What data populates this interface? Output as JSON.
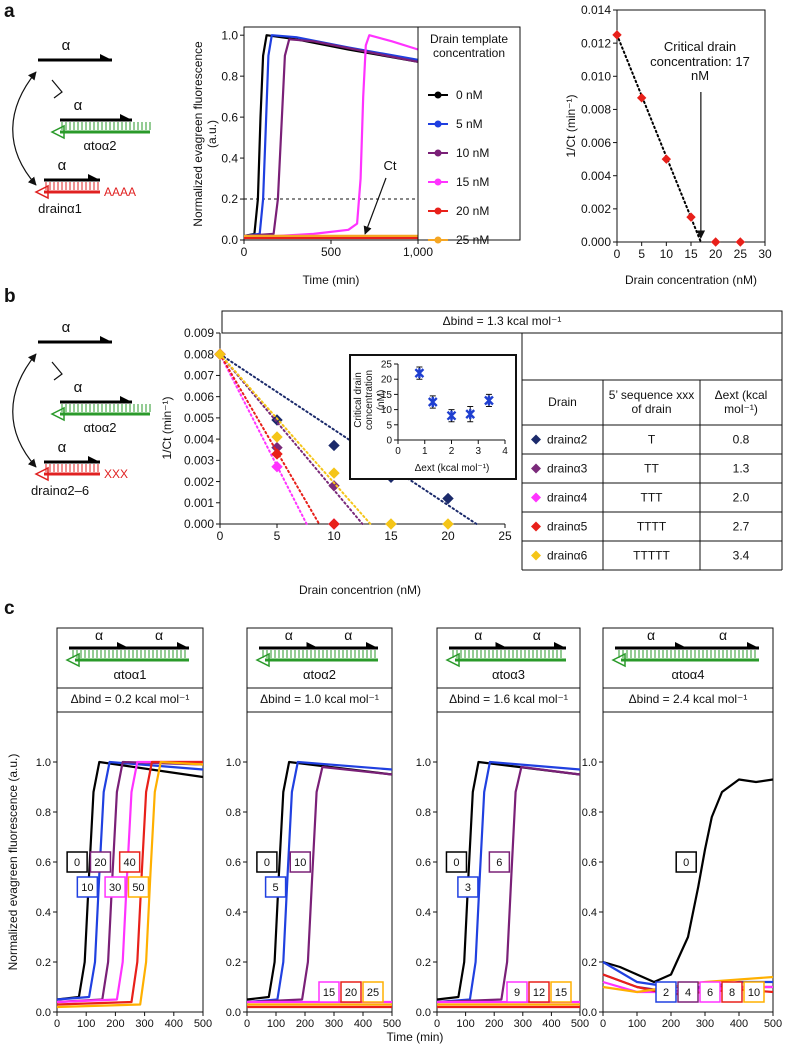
{
  "panel_labels": [
    "a",
    "b",
    "c"
  ],
  "schematics": {
    "a": {
      "top": "α",
      "middle": "α",
      "middle_label": "αtoα2",
      "bottom": "α",
      "tail": "AAAA",
      "bottom_label": "drainα1"
    },
    "b": {
      "top": "α",
      "middle": "α",
      "middle_label": "αtoα2",
      "bottom": "α",
      "tail": "XXX",
      "bottom_label": "drainα2–6"
    }
  },
  "shared_labels": {
    "c_y_label": "Normalized evagreen fluorescence (a.u.)",
    "c_x_label": "Time (min)"
  },
  "chart_data": [
    {
      "type": "line",
      "y_label": "Normalized evagreen fluorescence (a.u.)",
      "x_label": "Time (min)",
      "legend_title": "Drain template concentration",
      "legend": "outside right",
      "xlim": [
        0,
        1000
      ],
      "xticks": [
        0,
        500,
        {
          "value": 1000,
          "label": "1,000"
        }
      ],
      "ylim": [
        0,
        1.04
      ],
      "yticks": [
        {
          "value": 0,
          "label": "0.0"
        },
        0.2,
        0.4,
        0.6,
        0.8,
        {
          "value": 1,
          "label": "1.0"
        }
      ],
      "threshold": 0.2,
      "ct_label": "Ct",
      "series": [
        {
          "name": "0 nM",
          "color": "#000000",
          "x": [
            0,
            60,
            80,
            95,
            110,
            130,
            300,
            600,
            1000
          ],
          "values": [
            0.02,
            0.03,
            0.2,
            0.6,
            0.9,
            1.0,
            0.98,
            0.93,
            0.87
          ]
        },
        {
          "name": "5 nM",
          "color": "#1f3fe0",
          "x": [
            0,
            90,
            110,
            125,
            140,
            160,
            300,
            600,
            1000
          ],
          "values": [
            0.02,
            0.03,
            0.2,
            0.55,
            0.9,
            1.0,
            0.99,
            0.94,
            0.88
          ]
        },
        {
          "name": "10 nM",
          "color": "#7a2077",
          "x": [
            0,
            170,
            195,
            215,
            235,
            260,
            400,
            700,
            1000
          ],
          "values": [
            0.02,
            0.03,
            0.2,
            0.55,
            0.9,
            0.98,
            0.97,
            0.92,
            0.87
          ]
        },
        {
          "name": "15 nM",
          "color": "#ff33ff",
          "x": [
            0,
            400,
            600,
            650,
            670,
            685,
            700,
            720,
            850,
            1000
          ],
          "values": [
            0.01,
            0.03,
            0.05,
            0.08,
            0.3,
            0.7,
            0.95,
            1.0,
            0.97,
            0.93
          ]
        },
        {
          "name": "20 nM",
          "color": "#e8201a",
          "x": [
            0,
            1000
          ],
          "values": [
            0.01,
            0.01
          ]
        },
        {
          "name": "25 nM",
          "color": "#f5a623",
          "x": [
            0,
            1000
          ],
          "values": [
            0.02,
            0.02
          ]
        }
      ]
    },
    {
      "type": "scatter",
      "y_label": "1/Ct (min⁻¹)",
      "x_label": "Drain concentration (nM)",
      "xlim": [
        0,
        30
      ],
      "xticks": [
        0,
        5,
        10,
        15,
        20,
        25,
        30
      ],
      "ylim": [
        0,
        0.014
      ],
      "yticks": [
        {
          "value": 0,
          "label": "0.000"
        },
        0.002,
        0.004,
        0.006,
        0.008,
        {
          "value": 0.01,
          "label": "0.010"
        },
        0.012,
        0.014
      ],
      "annotation": "Critical drain concentration: 17 nM",
      "series": [
        {
          "color": "#e8201a",
          "x": [
            0,
            5,
            10,
            15,
            20,
            25
          ],
          "values": [
            0.0125,
            0.0087,
            0.005,
            0.0015,
            0,
            0
          ],
          "fit": {
            "x": [
              0,
              17
            ],
            "values": [
              0.0125,
              0
            ]
          }
        }
      ]
    },
    {
      "type": "scatter",
      "title": "Δbind = 1.3 kcal mol⁻¹",
      "y_label": "1/Ct (min⁻¹)",
      "x_label": "Drain concentrion (nM)",
      "xlim": [
        0,
        25
      ],
      "xticks": [
        0,
        5,
        10,
        15,
        20,
        25
      ],
      "ylim": [
        0,
        0.009
      ],
      "yticks": [
        {
          "value": 0,
          "label": "0.000"
        },
        0.001,
        0.002,
        0.003,
        0.004,
        0.005,
        0.006,
        0.007,
        0.008,
        0.009
      ],
      "series": [
        {
          "name": "drainα2",
          "color": "#1b2a6b",
          "x": [
            0,
            5,
            10,
            15,
            20
          ],
          "values": [
            0.008,
            0.0049,
            0.0037,
            0.0022,
            0.0012
          ],
          "fit": {
            "x": [
              0,
              22.5
            ],
            "values": [
              0.008,
              0
            ]
          }
        },
        {
          "name": "drainα3",
          "color": "#7a2a7a",
          "x": [
            0,
            5,
            10
          ],
          "values": [
            0.008,
            0.0036,
            0.0018
          ],
          "fit": {
            "x": [
              0,
              12.5
            ],
            "values": [
              0.008,
              0
            ]
          }
        },
        {
          "name": "drainα4",
          "color": "#ff33ff",
          "x": [
            0,
            5,
            10
          ],
          "values": [
            0.008,
            0.0027,
            0
          ],
          "fit": {
            "x": [
              0,
              7.6
            ],
            "values": [
              0.008,
              0
            ]
          }
        },
        {
          "name": "drainα5",
          "color": "#e8201a",
          "x": [
            0,
            5,
            10
          ],
          "values": [
            0.008,
            0.0033,
            0
          ],
          "fit": {
            "x": [
              0,
              8.7
            ],
            "values": [
              0.008,
              0
            ]
          }
        },
        {
          "name": "drainα6",
          "color": "#f5c518",
          "x": [
            0,
            5,
            10,
            15,
            20
          ],
          "values": [
            0.008,
            0.0041,
            0.0024,
            0,
            0
          ],
          "fit": {
            "x": [
              0,
              13.2
            ],
            "values": [
              0.008,
              0
            ]
          }
        }
      ],
      "table": {
        "header": [
          "Drain",
          "5’ sequence xxx of drain",
          "Δext (kcal mol⁻¹)"
        ],
        "rows": [
          [
            "T",
            "0.8"
          ],
          [
            "TT",
            "1.3"
          ],
          [
            "TTT",
            "2.0"
          ],
          [
            "TTTT",
            "2.7"
          ],
          [
            "TTTTT",
            "3.4"
          ]
        ]
      }
    },
    {
      "type": "scatter",
      "y_label": "Critical drain concentration (nM)",
      "x_label": "Δext (kcal mol⁻¹)",
      "xlim": [
        0,
        4
      ],
      "xticks": [
        0,
        1,
        2,
        3,
        4
      ],
      "ylim": [
        0,
        25
      ],
      "yticks": [
        0,
        5,
        10,
        15,
        20,
        25
      ],
      "series": [
        {
          "color": "#1f3fd0",
          "x": [
            0.8,
            1.3,
            2.0,
            2.7,
            3.4
          ],
          "values": [
            22,
            12.5,
            8,
            8.5,
            13
          ],
          "errors": [
            2,
            2,
            2,
            2.5,
            2
          ]
        }
      ]
    },
    {
      "type": "line",
      "template": "αtoα1",
      "domain_labels": [
        "α",
        "α"
      ],
      "subtitle": "Δbind = 0.2 kcal mol⁻¹",
      "xlim": [
        0,
        500
      ],
      "xticks": [
        0,
        100,
        200,
        300,
        400,
        500
      ],
      "ylim": [
        0,
        1.2
      ],
      "yticks": [
        {
          "value": 0,
          "label": "0.0"
        },
        0.2,
        0.4,
        0.6,
        0.8,
        {
          "value": 1,
          "label": "1.0"
        }
      ],
      "series": [
        {
          "name": "0",
          "color": "#000000",
          "x": [
            0,
            75,
            95,
            110,
            125,
            145,
            500
          ],
          "values": [
            0.05,
            0.06,
            0.2,
            0.55,
            0.88,
            1.0,
            0.94
          ]
        },
        {
          "name": "10",
          "color": "#2040e0",
          "x": [
            0,
            110,
            130,
            145,
            160,
            180,
            500
          ],
          "values": [
            0.05,
            0.06,
            0.2,
            0.55,
            0.88,
            1.0,
            0.97
          ]
        },
        {
          "name": "20",
          "color": "#7a2077",
          "x": [
            0,
            155,
            175,
            190,
            205,
            225,
            500
          ],
          "values": [
            0.04,
            0.05,
            0.2,
            0.55,
            0.88,
            1.0,
            0.99
          ]
        },
        {
          "name": "30",
          "color": "#ff33ff",
          "x": [
            0,
            205,
            225,
            240,
            255,
            275,
            500
          ],
          "values": [
            0.04,
            0.05,
            0.2,
            0.55,
            0.88,
            1.0,
            1.0
          ]
        },
        {
          "name": "40",
          "color": "#e8201a",
          "x": [
            0,
            255,
            275,
            290,
            305,
            325,
            500
          ],
          "values": [
            0.03,
            0.04,
            0.2,
            0.55,
            0.88,
            1.0,
            1.0
          ]
        },
        {
          "name": "50",
          "color": "#ffb000",
          "x": [
            0,
            285,
            305,
            320,
            335,
            355,
            500
          ],
          "values": [
            0.02,
            0.03,
            0.2,
            0.55,
            0.88,
            1.0,
            0.99
          ]
        }
      ]
    },
    {
      "type": "line",
      "template": "αtoα2",
      "domain_labels": [
        "α",
        "α"
      ],
      "subtitle": "Δbind = 1.0 kcal mol⁻¹",
      "xlim": [
        0,
        500
      ],
      "xticks": [
        0,
        100,
        200,
        300,
        400,
        500
      ],
      "ylim": [
        0,
        1.2
      ],
      "yticks": [
        {
          "value": 0,
          "label": "0.0"
        },
        0.2,
        0.4,
        0.6,
        0.8,
        {
          "value": 1,
          "label": "1.0"
        }
      ],
      "series": [
        {
          "name": "0",
          "color": "#000000",
          "x": [
            0,
            75,
            95,
            110,
            125,
            145,
            500
          ],
          "values": [
            0.05,
            0.06,
            0.2,
            0.55,
            0.88,
            1.0,
            0.95
          ]
        },
        {
          "name": "5",
          "color": "#2040e0",
          "x": [
            0,
            105,
            125,
            140,
            155,
            175,
            500
          ],
          "values": [
            0.04,
            0.05,
            0.2,
            0.55,
            0.88,
            1.0,
            0.97
          ]
        },
        {
          "name": "10",
          "color": "#7a2077",
          "x": [
            0,
            190,
            210,
            225,
            240,
            260,
            500
          ],
          "values": [
            0.04,
            0.05,
            0.2,
            0.55,
            0.88,
            0.98,
            0.95
          ]
        },
        {
          "name": "15",
          "color": "#ff33ff",
          "x": [
            0,
            500
          ],
          "values": [
            0.04,
            0.04
          ]
        },
        {
          "name": "20",
          "color": "#e8201a",
          "x": [
            0,
            500
          ],
          "values": [
            0.02,
            0.02
          ]
        },
        {
          "name": "25",
          "color": "#ffb000",
          "x": [
            0,
            500
          ],
          "values": [
            0.03,
            0.03
          ]
        }
      ]
    },
    {
      "type": "line",
      "template": "αtoα3",
      "domain_labels": [
        "α",
        "α"
      ],
      "subtitle": "Δbind = 1.6 kcal mol⁻¹",
      "xlim": [
        0,
        500
      ],
      "xticks": [
        0,
        100,
        200,
        300,
        400,
        500
      ],
      "ylim": [
        0,
        1.2
      ],
      "yticks": [
        {
          "value": 0,
          "label": "0.0"
        },
        0.2,
        0.4,
        0.6,
        0.8,
        {
          "value": 1,
          "label": "1.0"
        }
      ],
      "series": [
        {
          "name": "0",
          "color": "#000000",
          "x": [
            0,
            75,
            95,
            110,
            125,
            145,
            500
          ],
          "values": [
            0.05,
            0.06,
            0.2,
            0.55,
            0.88,
            1.0,
            0.95
          ]
        },
        {
          "name": "3",
          "color": "#2040e0",
          "x": [
            0,
            115,
            135,
            150,
            165,
            185,
            500
          ],
          "values": [
            0.04,
            0.05,
            0.2,
            0.55,
            0.88,
            1.0,
            0.97
          ]
        },
        {
          "name": "6",
          "color": "#7a2077",
          "x": [
            0,
            225,
            245,
            260,
            275,
            295,
            500
          ],
          "values": [
            0.04,
            0.05,
            0.2,
            0.55,
            0.88,
            0.98,
            0.95
          ]
        },
        {
          "name": "9",
          "color": "#ff33ff",
          "x": [
            0,
            500
          ],
          "values": [
            0.04,
            0.04
          ]
        },
        {
          "name": "12",
          "color": "#e8201a",
          "x": [
            0,
            500
          ],
          "values": [
            0.02,
            0.02
          ]
        },
        {
          "name": "15",
          "color": "#ffb000",
          "x": [
            0,
            500
          ],
          "values": [
            0.03,
            0.03
          ]
        }
      ]
    },
    {
      "type": "line",
      "template": "αtoα4",
      "domain_labels": [
        "α",
        "α"
      ],
      "subtitle": "Δbind = 2.4 kcal mol⁻¹",
      "xlim": [
        0,
        500
      ],
      "xticks": [
        0,
        100,
        200,
        300,
        400,
        500
      ],
      "ylim": [
        0,
        1.2
      ],
      "yticks": [
        {
          "value": 0,
          "label": "0.0"
        },
        0.2,
        0.4,
        0.6,
        0.8,
        {
          "value": 1,
          "label": "1.0"
        }
      ],
      "series": [
        {
          "name": "0",
          "color": "#000000",
          "x": [
            0,
            50,
            100,
            150,
            200,
            250,
            280,
            300,
            320,
            350,
            400,
            450,
            500
          ],
          "values": [
            0.2,
            0.18,
            0.15,
            0.12,
            0.15,
            0.3,
            0.5,
            0.65,
            0.78,
            0.88,
            0.93,
            0.92,
            0.93
          ]
        },
        {
          "name": "2",
          "color": "#2040e0",
          "x": [
            0,
            100,
            200,
            300,
            400,
            500
          ],
          "values": [
            0.2,
            0.12,
            0.1,
            0.1,
            0.12,
            0.12
          ]
        },
        {
          "name": "4",
          "color": "#7a2077",
          "x": [
            0,
            100,
            200,
            300,
            400,
            500
          ],
          "values": [
            0.15,
            0.1,
            0.08,
            0.1,
            0.1,
            0.1
          ]
        },
        {
          "name": "6",
          "color": "#ff33ff",
          "x": [
            0,
            100,
            200,
            300,
            400,
            500
          ],
          "values": [
            0.12,
            0.08,
            0.08,
            0.09,
            0.1,
            0.1
          ]
        },
        {
          "name": "8",
          "color": "#e8201a",
          "x": [
            0,
            100,
            200,
            300,
            400,
            500
          ],
          "values": [
            0.15,
            0.1,
            0.07,
            0.08,
            0.09,
            0.08
          ]
        },
        {
          "name": "10",
          "color": "#ffb000",
          "x": [
            0,
            100,
            200,
            300,
            400,
            500
          ],
          "values": [
            0.1,
            0.08,
            0.1,
            0.12,
            0.13,
            0.14
          ]
        }
      ]
    }
  ]
}
